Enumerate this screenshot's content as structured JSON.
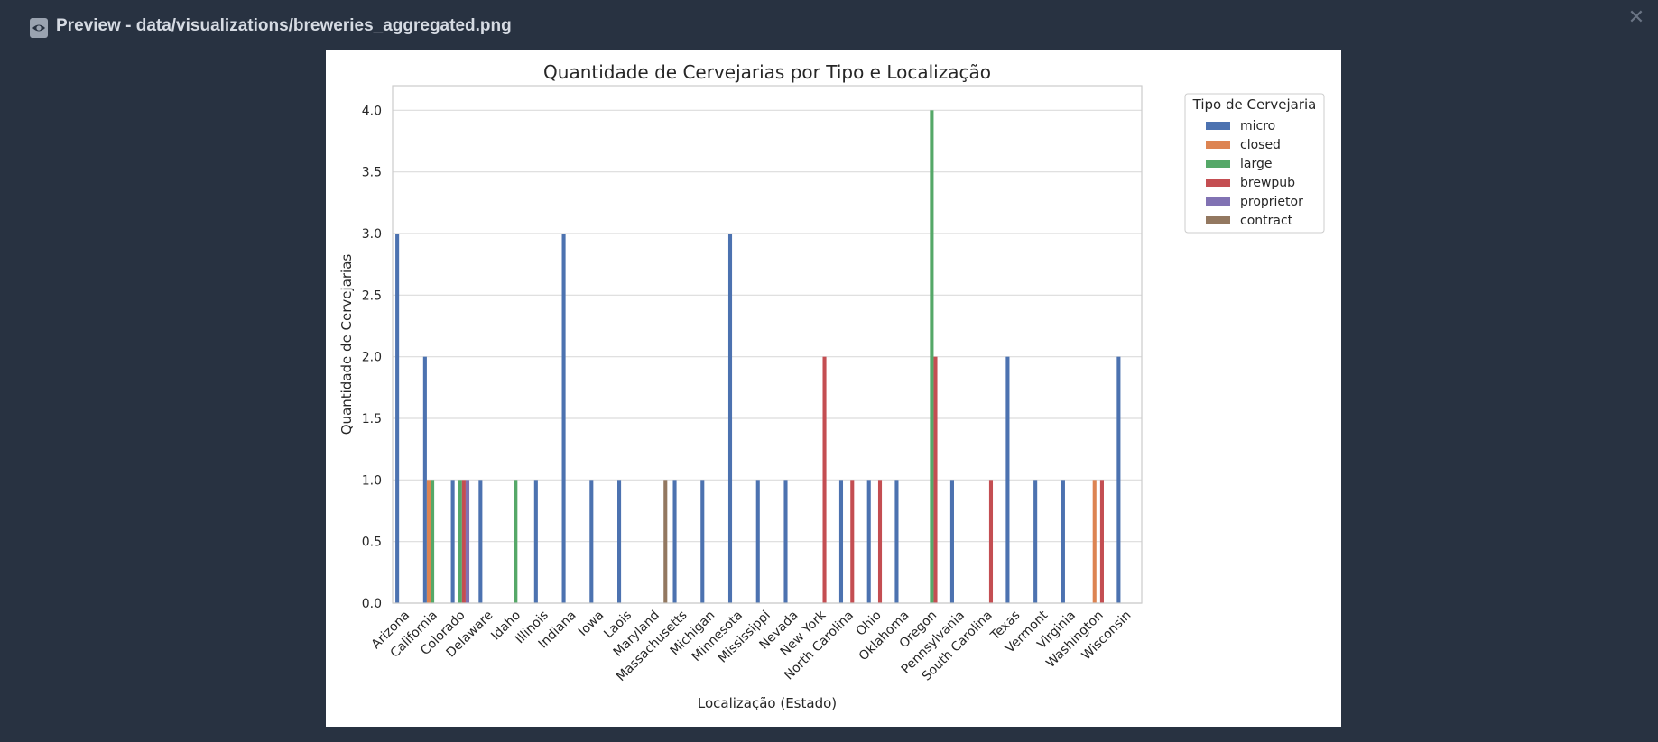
{
  "window": {
    "title": "Preview - data/visualizations/breweries_aggregated.png",
    "icon": "eye-icon",
    "close_icon": "close-icon"
  },
  "colors": {
    "background": "#283241",
    "micro": "#4c72b0",
    "closed": "#dd8452",
    "large": "#55a868",
    "brewpub": "#c44e52",
    "proprietor": "#8172b3",
    "contract": "#937860"
  },
  "chart_data": {
    "type": "bar",
    "title": "Quantidade de Cervejarias por Tipo e Localização",
    "xlabel": "Localização (Estado)",
    "ylabel": "Quantidade de Cervejarias",
    "ylim": [
      0,
      4.2
    ],
    "yticks": [
      "0.0",
      "0.5",
      "1.0",
      "1.5",
      "2.0",
      "2.5",
      "3.0",
      "3.5",
      "4.0"
    ],
    "grid": true,
    "legend_title": "Tipo de Cervejaria",
    "legend_position": "upper-right-outside",
    "categories": [
      "Arizona",
      "California",
      "Colorado",
      "Delaware",
      "Idaho",
      "Illinois",
      "Indiana",
      "Iowa",
      "Laois",
      "Maryland",
      "Massachusetts",
      "Michigan",
      "Minnesota",
      "Mississippi",
      "Nevada",
      "New York",
      "North Carolina",
      "Ohio",
      "Oklahoma",
      "Oregon",
      "Pennsylvania",
      "South Carolina",
      "Texas",
      "Vermont",
      "Virginia",
      "Washington",
      "Wisconsin"
    ],
    "series": [
      {
        "name": "micro",
        "values": [
          3,
          2,
          1,
          1,
          0,
          1,
          3,
          1,
          1,
          0,
          1,
          1,
          3,
          1,
          1,
          0,
          1,
          1,
          1,
          0,
          1,
          0,
          2,
          1,
          1,
          0,
          2
        ]
      },
      {
        "name": "closed",
        "values": [
          0,
          1,
          0,
          0,
          0,
          0,
          0,
          0,
          0,
          0,
          0,
          0,
          0,
          0,
          0,
          0,
          0,
          0,
          0,
          0,
          0,
          0,
          0,
          0,
          0,
          1,
          0
        ]
      },
      {
        "name": "large",
        "values": [
          0,
          1,
          1,
          0,
          1,
          0,
          0,
          0,
          0,
          0,
          0,
          0,
          0,
          0,
          0,
          0,
          0,
          0,
          0,
          4,
          0,
          0,
          0,
          0,
          0,
          0,
          0
        ]
      },
      {
        "name": "brewpub",
        "values": [
          0,
          0,
          1,
          0,
          0,
          0,
          0,
          0,
          0,
          0,
          0,
          0,
          0,
          0,
          0,
          2,
          1,
          1,
          0,
          2,
          0,
          1,
          0,
          0,
          0,
          1,
          0
        ]
      },
      {
        "name": "proprietor",
        "values": [
          0,
          0,
          1,
          0,
          0,
          0,
          0,
          0,
          0,
          0,
          0,
          0,
          0,
          0,
          0,
          0,
          0,
          0,
          0,
          0,
          0,
          0,
          0,
          0,
          0,
          0,
          0
        ]
      },
      {
        "name": "contract",
        "values": [
          0,
          0,
          0,
          0,
          0,
          0,
          0,
          0,
          0,
          1,
          0,
          0,
          0,
          0,
          0,
          0,
          0,
          0,
          0,
          0,
          0,
          0,
          0,
          0,
          0,
          0,
          0
        ]
      }
    ]
  }
}
